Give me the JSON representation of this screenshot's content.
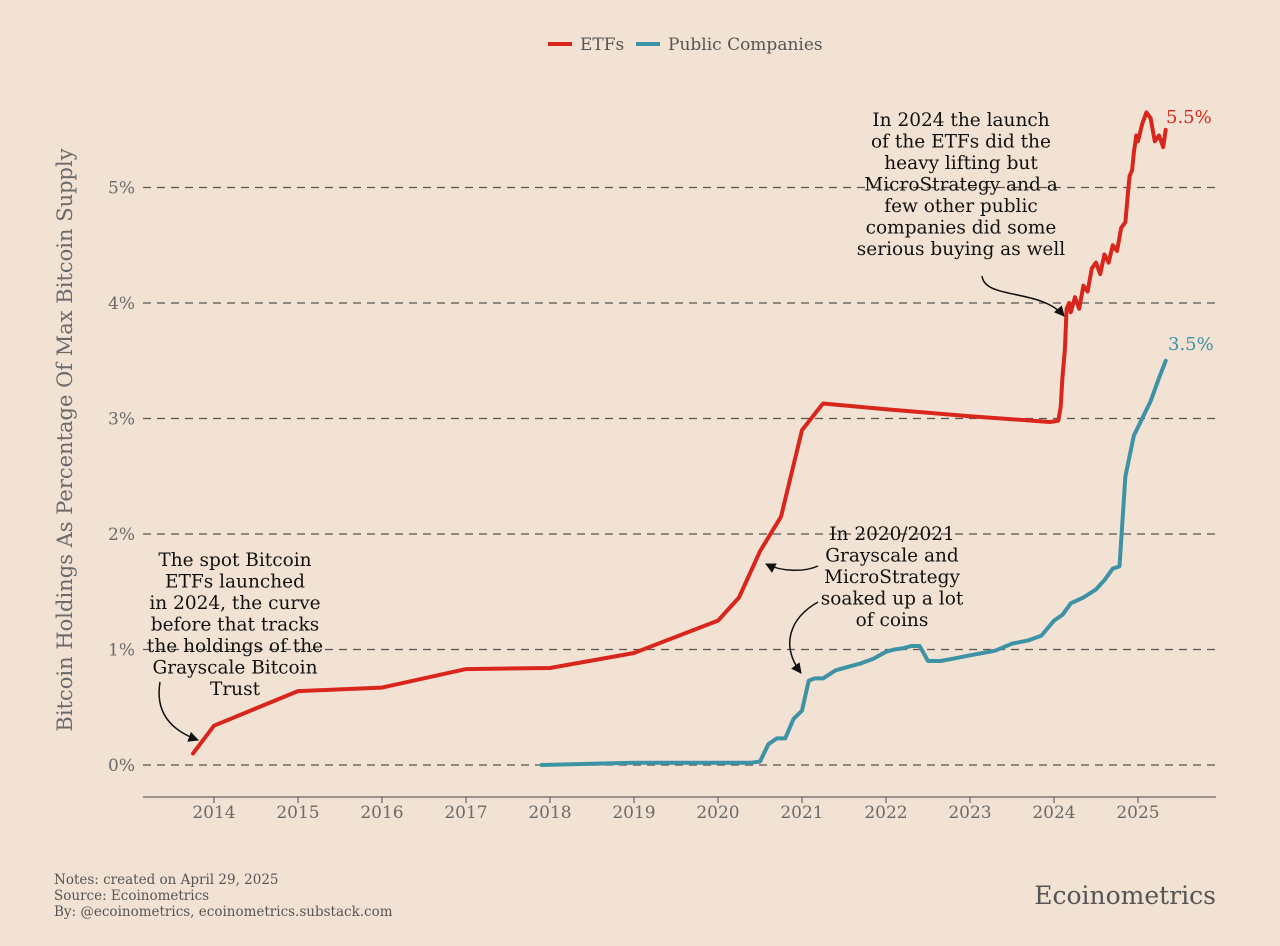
{
  "chart_data": {
    "type": "line",
    "title": "",
    "ylabel": "Bitcoin Holdings As Percentage Of Max Bitcoin Supply",
    "xlabel": "",
    "xlim": [
      2013.2,
      2025.85
    ],
    "ylim": [
      -0.3,
      5.9
    ],
    "x_ticks": [
      2014,
      2015,
      2016,
      2017,
      2018,
      2019,
      2020,
      2021,
      2022,
      2023,
      2024,
      2025
    ],
    "x_tick_labels": [
      "2014",
      "2015",
      "2016",
      "2017",
      "2018",
      "2019",
      "2020",
      "2021",
      "2022",
      "2023",
      "2024",
      "2025"
    ],
    "y_ticks": [
      0,
      1,
      2,
      3,
      4,
      5
    ],
    "y_tick_labels": [
      "0%",
      "1%",
      "2%",
      "3%",
      "4%",
      "5%"
    ],
    "grid": "horizontal dashed",
    "legend": {
      "position": "top-center",
      "entries": [
        "ETFs",
        "Public Companies"
      ]
    },
    "series": [
      {
        "name": "ETFs",
        "color": "#d9261c",
        "end_label": "5.5%",
        "x": [
          2013.75,
          2014.0,
          2015.0,
          2016.0,
          2017.0,
          2018.0,
          2019.0,
          2020.0,
          2020.25,
          2020.5,
          2020.75,
          2021.0,
          2021.25,
          2022.0,
          2023.0,
          2023.95,
          2024.05,
          2024.08,
          2024.1,
          2024.13,
          2024.15,
          2024.18,
          2024.2,
          2024.25,
          2024.3,
          2024.35,
          2024.4,
          2024.45,
          2024.5,
          2024.55,
          2024.6,
          2024.65,
          2024.7,
          2024.75,
          2024.8,
          2024.85,
          2024.88,
          2024.9,
          2024.93,
          2024.95,
          2024.98,
          2025.0,
          2025.05,
          2025.1,
          2025.15,
          2025.2,
          2025.25,
          2025.3,
          2025.33
        ],
        "values": [
          0.1,
          0.34,
          0.64,
          0.67,
          0.83,
          0.84,
          0.97,
          1.25,
          1.45,
          1.85,
          2.15,
          2.9,
          3.13,
          3.08,
          3.02,
          2.97,
          2.98,
          3.1,
          3.35,
          3.6,
          3.95,
          4.0,
          3.92,
          4.05,
          3.95,
          4.15,
          4.1,
          4.3,
          4.35,
          4.25,
          4.42,
          4.35,
          4.5,
          4.45,
          4.65,
          4.7,
          4.95,
          5.1,
          5.15,
          5.3,
          5.45,
          5.4,
          5.55,
          5.65,
          5.6,
          5.4,
          5.45,
          5.35,
          5.5
        ]
      },
      {
        "name": "Public Companies",
        "color": "#3e92a5",
        "end_label": "3.5%",
        "x": [
          2017.9,
          2018.5,
          2019.0,
          2019.5,
          2020.0,
          2020.4,
          2020.5,
          2020.6,
          2020.7,
          2020.8,
          2020.9,
          2021.0,
          2021.08,
          2021.15,
          2021.25,
          2021.4,
          2021.55,
          2021.7,
          2021.85,
          2022.0,
          2022.1,
          2022.2,
          2022.3,
          2022.4,
          2022.5,
          2022.65,
          2022.8,
          2023.0,
          2023.15,
          2023.3,
          2023.5,
          2023.7,
          2023.85,
          2024.0,
          2024.1,
          2024.2,
          2024.35,
          2024.5,
          2024.6,
          2024.7,
          2024.78,
          2024.85,
          2024.95,
          2025.05,
          2025.15,
          2025.25,
          2025.33
        ],
        "values": [
          0.0,
          0.01,
          0.02,
          0.02,
          0.02,
          0.02,
          0.03,
          0.18,
          0.23,
          0.23,
          0.4,
          0.47,
          0.73,
          0.75,
          0.75,
          0.82,
          0.85,
          0.88,
          0.92,
          0.98,
          1.0,
          1.01,
          1.03,
          1.03,
          0.9,
          0.9,
          0.92,
          0.95,
          0.97,
          0.99,
          1.05,
          1.08,
          1.12,
          1.25,
          1.3,
          1.4,
          1.45,
          1.52,
          1.6,
          1.7,
          1.72,
          2.5,
          2.85,
          3.0,
          3.15,
          3.35,
          3.5
        ]
      }
    ],
    "annotations": [
      {
        "lines": [
          "The spot Bitcoin",
          "ETFs launched",
          "in 2024, the curve",
          "before that tracks",
          "the holdings of the",
          "Grayscale Bitcoin",
          "Trust"
        ]
      },
      {
        "lines": [
          "In 2020/2021",
          "Grayscale and",
          "MicroStrategy",
          "soaked up a lot",
          "of coins"
        ]
      },
      {
        "lines": [
          "In 2024 the launch",
          "of the ETFs did the",
          "heavy lifting but",
          "MicroStrategy and a",
          "few other public",
          "companies did some",
          "serious buying as well"
        ]
      }
    ]
  },
  "footer": {
    "notes": "Notes: created on April 29, 2025",
    "source": "Source: Ecoinometrics",
    "by": "By: @ecoinometrics, ecoinometrics.substack.com",
    "brand": "Ecoinometrics"
  }
}
